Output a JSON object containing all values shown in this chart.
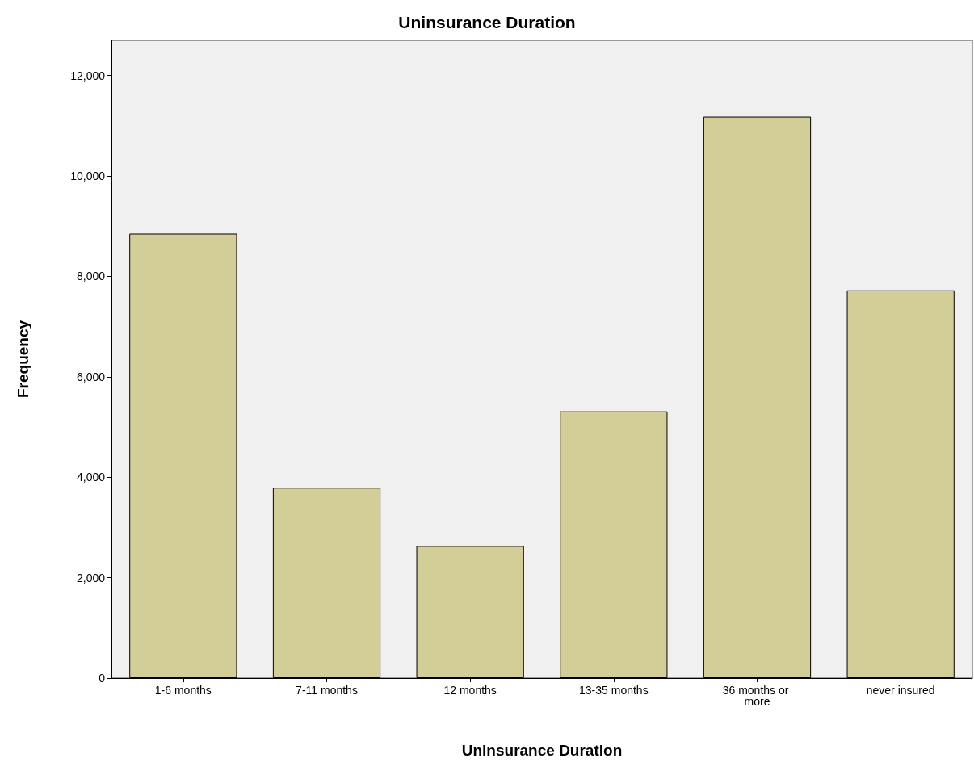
{
  "chart_data": {
    "type": "bar",
    "title": "Uninsurance Duration",
    "xlabel": "Uninsurance Duration",
    "ylabel": "Frequency",
    "categories": [
      "1-6 months",
      "7-11 months",
      "12 months",
      "13-35 months",
      "36 months or more",
      "never insured"
    ],
    "values": [
      8850,
      3790,
      2630,
      5310,
      11180,
      7720
    ],
    "color": "#d3ce97",
    "ylim": [
      0,
      12700
    ],
    "yticks": [
      {
        "value": 0,
        "label": "0"
      },
      {
        "value": 2000,
        "label": "2,000"
      },
      {
        "value": 4000,
        "label": "4,000"
      },
      {
        "value": 6000,
        "label": "6,000"
      },
      {
        "value": 8000,
        "label": "8,000"
      },
      {
        "value": 10000,
        "label": "10,000"
      },
      {
        "value": 12000,
        "label": "12,000"
      }
    ],
    "grid": false
  }
}
